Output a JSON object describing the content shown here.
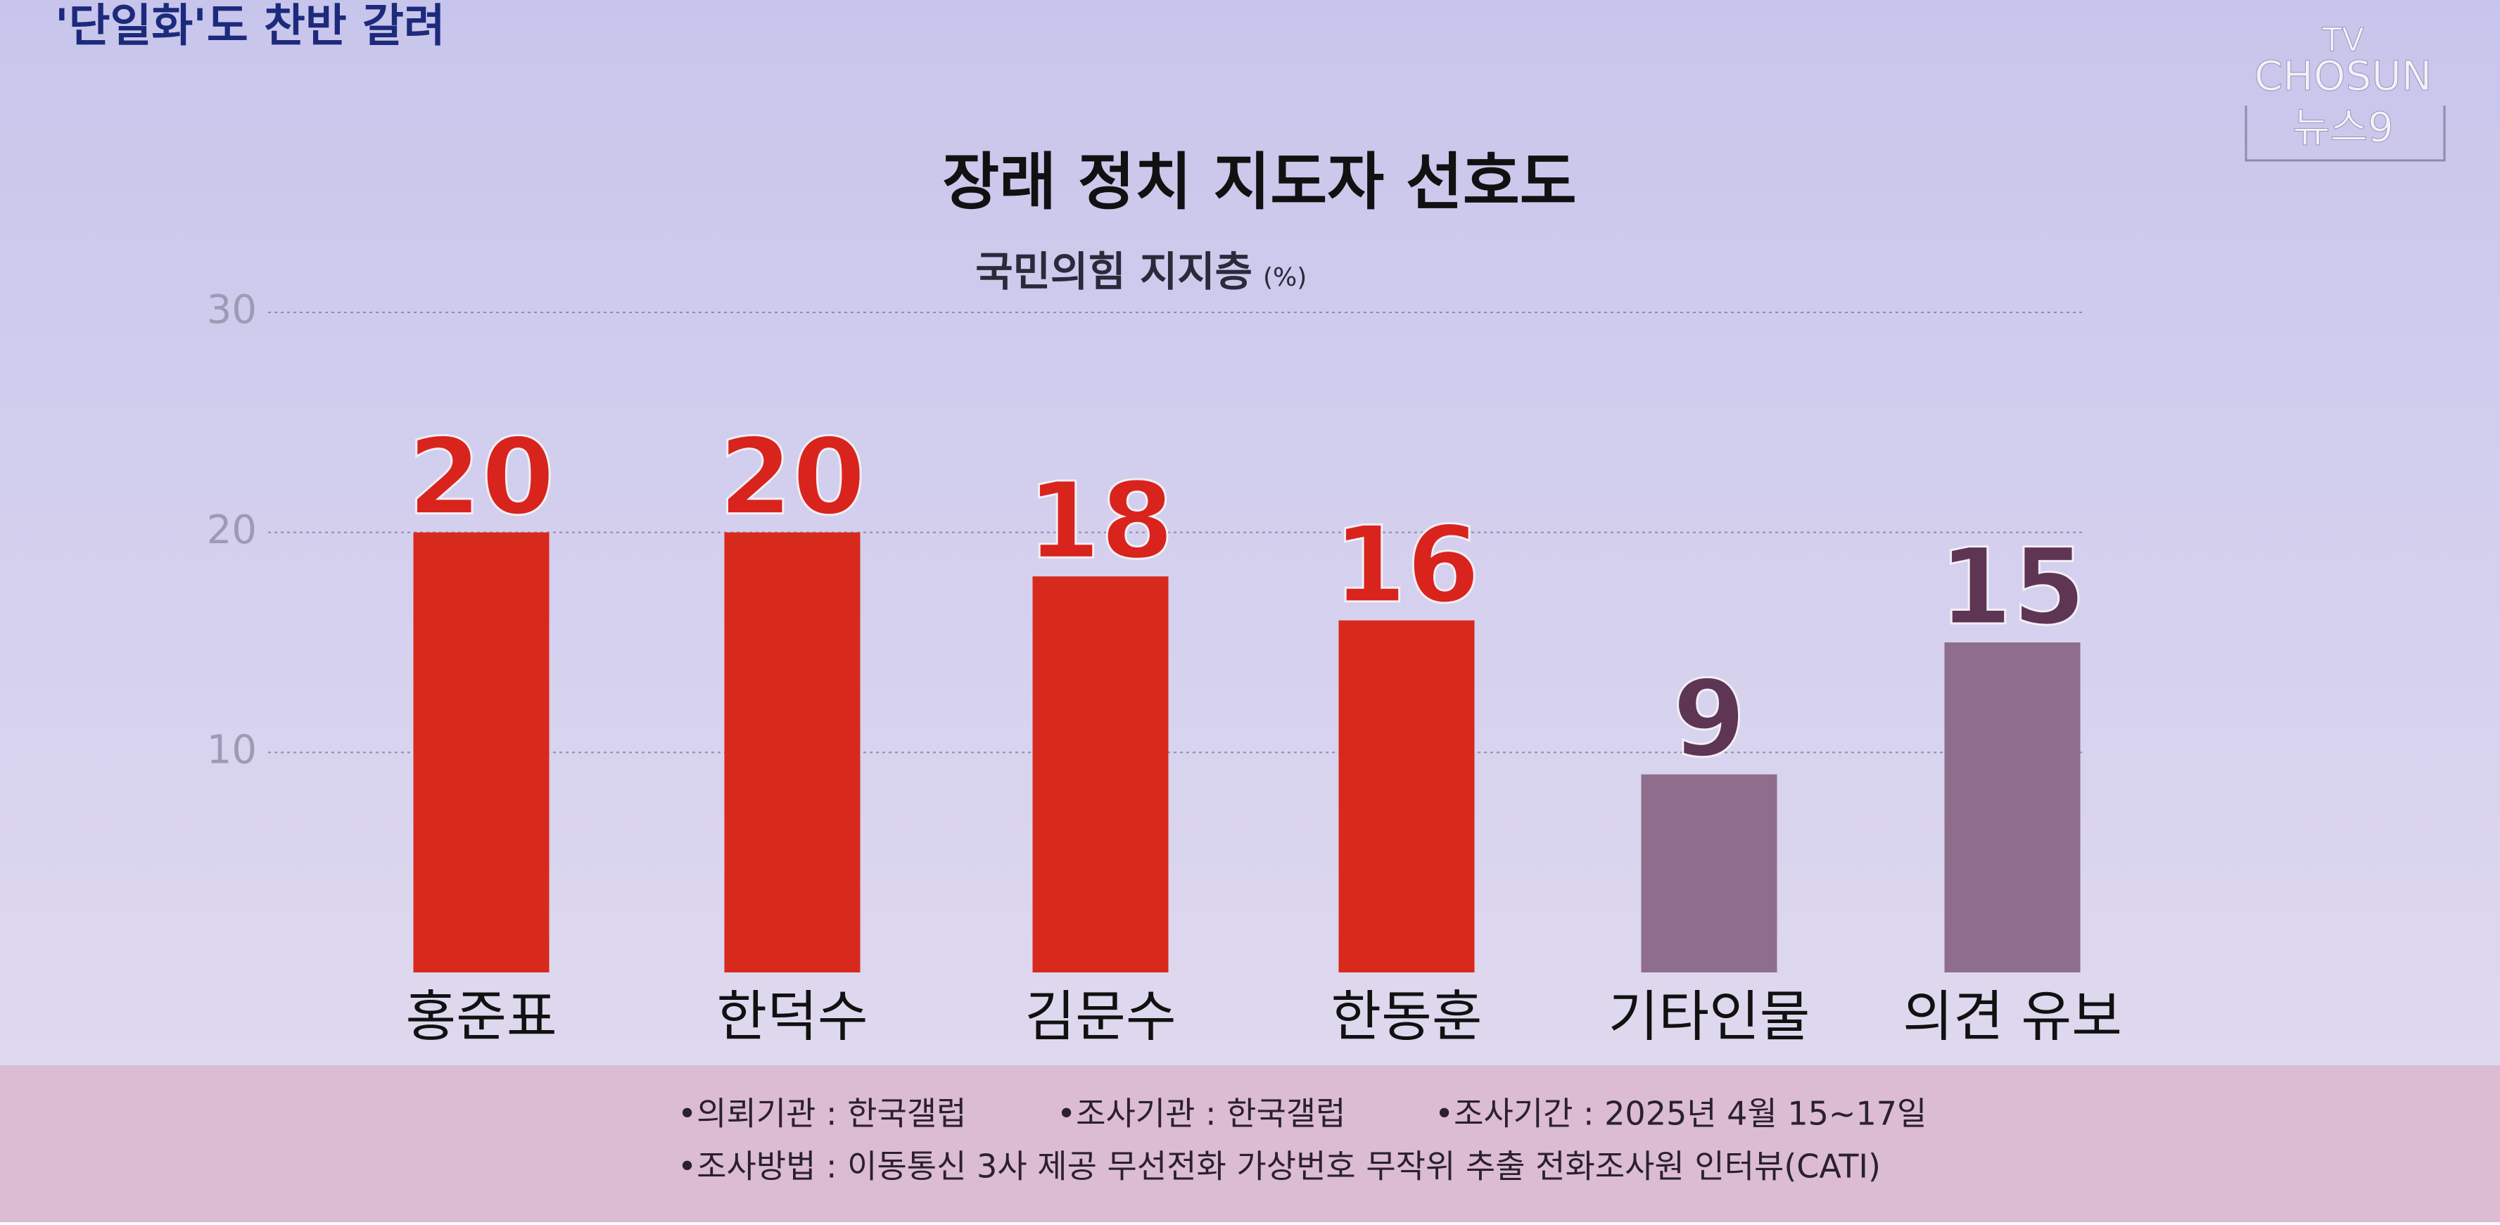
{
  "header": {
    "title": "'단일화'도 찬반 갈려"
  },
  "logo": {
    "line1": "TV",
    "line2": "CHOSUN",
    "line3": "뉴스9"
  },
  "chart_data": {
    "type": "bar",
    "title": "장래 정치 지도자 선호도",
    "subtitle": "국민의힘 지지층",
    "unit": "(%)",
    "categories": [
      "홍준표",
      "한덕수",
      "김문수",
      "한동훈",
      "기타인물",
      "의견 유보"
    ],
    "values": [
      20,
      20,
      18,
      16,
      9,
      15
    ],
    "colors": [
      "#d8291d",
      "#d8291d",
      "#d8291d",
      "#d8291d",
      "#8f6d8c",
      "#8f6d8c"
    ],
    "label_colors": [
      "#d8241c",
      "#d8241c",
      "#d8241c",
      "#d8241c",
      "#5e3552",
      "#5e3552"
    ],
    "ylim": [
      0,
      30
    ],
    "yticks": [
      10,
      20,
      30
    ],
    "grid": true
  },
  "footer": {
    "lines": [
      [
        "•의뢰기관 : 한국갤럽",
        "•조사기관 : 한국갤럽",
        "•조사기간 : 2025년 4월 15~17일"
      ],
      [
        "•조사방법 : 이동통신 3사 제공 무선전화 가상번호 무작위 추출 전화조사원 인터뷰(CATI)"
      ]
    ]
  }
}
